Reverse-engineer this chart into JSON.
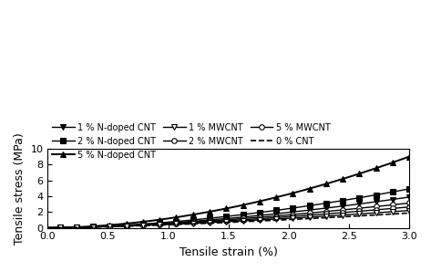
{
  "title": "",
  "xlabel": "Tensile strain (%)",
  "ylabel": "Tensile stress (MPa)",
  "xlim": [
    0.0,
    3.0
  ],
  "ylim": [
    0,
    10
  ],
  "xticks": [
    0.0,
    0.5,
    1.0,
    1.5,
    2.0,
    2.5,
    3.0
  ],
  "yticks": [
    0,
    2,
    4,
    6,
    8,
    10
  ],
  "series": [
    {
      "label": "5 % N-doped CNT",
      "color": "black",
      "marker": "^",
      "fillstyle": "full",
      "linestyle": "-",
      "linewidth": 1.4,
      "markersize": 4,
      "power": 1.85,
      "scale": 1.18
    },
    {
      "label": "2 % N-doped CNT",
      "color": "black",
      "marker": "s",
      "fillstyle": "full",
      "linestyle": "-",
      "linewidth": 1.0,
      "markersize": 4,
      "power": 1.75,
      "scale": 0.72
    },
    {
      "label": "1 % N-doped CNT",
      "color": "black",
      "marker": "v",
      "fillstyle": "full",
      "linestyle": "-",
      "linewidth": 1.0,
      "markersize": 4,
      "power": 1.7,
      "scale": 0.6
    },
    {
      "label": "5 % MWCNT",
      "color": "black",
      "marker": "o",
      "fillstyle": "none",
      "linestyle": "-",
      "linewidth": 1.0,
      "markersize": 4,
      "power": 1.6,
      "scale": 0.54
    },
    {
      "label": "2 % MWCNT",
      "color": "black",
      "marker": "o",
      "fillstyle": "none",
      "linestyle": "-",
      "linewidth": 1.0,
      "markersize": 4,
      "power": 1.55,
      "scale": 0.48
    },
    {
      "label": "1 % MWCNT",
      "color": "black",
      "marker": "v",
      "fillstyle": "none",
      "linestyle": "-",
      "linewidth": 1.0,
      "markersize": 4,
      "power": 1.48,
      "scale": 0.43
    },
    {
      "label": "0 % CNT",
      "color": "black",
      "marker": "none",
      "fillstyle": "none",
      "linestyle": "--",
      "linewidth": 1.2,
      "markersize": 4,
      "power": 1.45,
      "scale": 0.38
    }
  ],
  "legend_order": [
    "1 % N-doped CNT",
    "2 % N-doped CNT",
    "5 % N-doped CNT",
    "1 % MWCNT",
    "2 % MWCNT",
    "5 % MWCNT",
    "0 % CNT"
  ],
  "legend_ncol": 3,
  "background_color": "#ffffff",
  "figsize": [
    4.73,
    2.98
  ],
  "dpi": 100
}
